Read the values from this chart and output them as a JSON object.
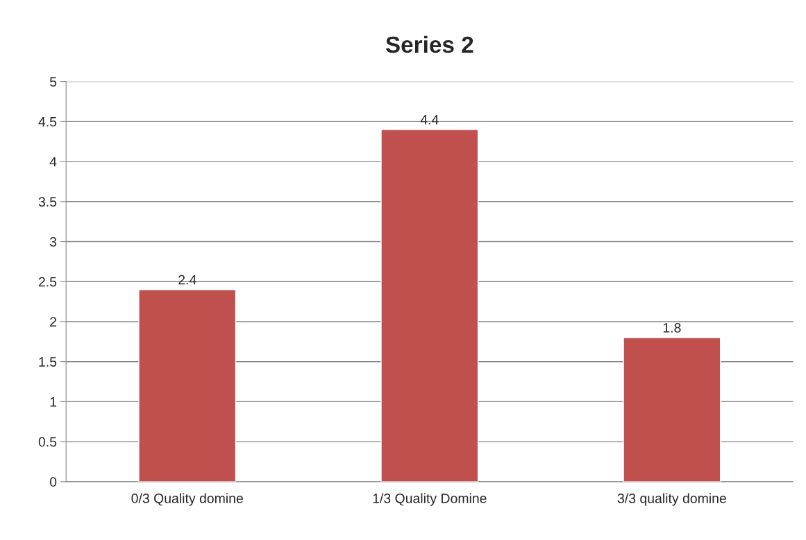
{
  "chart_data": {
    "type": "bar",
    "title": "Series 2",
    "categories": [
      "0/3 Quality domine",
      "1/3 Quality Domine",
      "3/3 quality domine"
    ],
    "values": [
      2.4,
      4.4,
      1.8
    ],
    "color": "#c0504d",
    "ylim": [
      0,
      5
    ],
    "yticks": [
      0,
      0.5,
      1,
      1.5,
      2,
      2.5,
      3,
      3.5,
      4,
      4.5,
      5
    ],
    "grid": "y",
    "data_labels": true
  }
}
